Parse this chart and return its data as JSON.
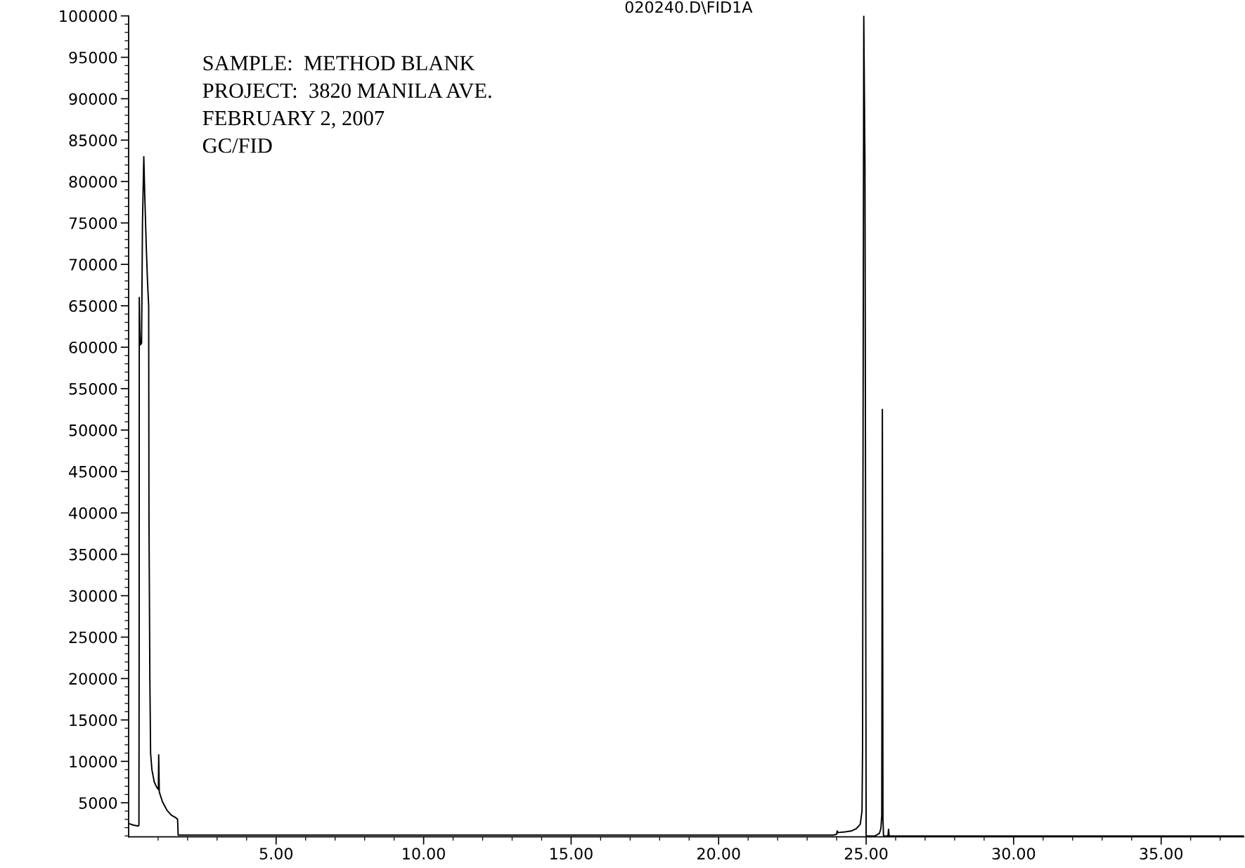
{
  "chart_data": {
    "type": "line",
    "title": "020240.D\\FID1A",
    "annotations": [
      "SAMPLE:  METHOD BLANK",
      "PROJECT:  3820 MANILA AVE.",
      "FEBRUARY 2, 2007",
      "GC/FID"
    ],
    "x": [
      0.0,
      0.16,
      0.33,
      0.35,
      0.357,
      0.362,
      0.38,
      0.4,
      0.44,
      0.47,
      0.515,
      0.55,
      0.6,
      0.64,
      0.68,
      0.69,
      0.72,
      0.745,
      0.79,
      0.87,
      0.95,
      1.01,
      1.02,
      1.04,
      1.15,
      1.3,
      1.45,
      1.6,
      1.66,
      1.68,
      10.0,
      20.0,
      23.9,
      24.0,
      24.02,
      24.05,
      24.3,
      24.5,
      24.67,
      24.8,
      24.86,
      24.88,
      24.89,
      24.92,
      24.96,
      25.0,
      25.3,
      25.35,
      25.45,
      25.5,
      25.53,
      25.55,
      25.57,
      25.59,
      25.74,
      25.76,
      25.78,
      37.8
    ],
    "values": [
      2500,
      2300,
      2200,
      2300,
      23000,
      66000,
      62000,
      60300,
      60500,
      75000,
      83000,
      78000,
      72000,
      68000,
      65000,
      40000,
      20000,
      11000,
      9000,
      7500,
      6900,
      6600,
      10800,
      6300,
      5100,
      4100,
      3500,
      3200,
      3000,
      1100,
      1100,
      1100,
      1100,
      1200,
      1600,
      1400,
      1500,
      1600,
      1900,
      2400,
      4000,
      12000,
      37000,
      100000,
      82000,
      1000,
      1000,
      1100,
      1300,
      1900,
      3500,
      52500,
      3000,
      1000,
      1000,
      1800,
      1000,
      1000
    ],
    "color": "#000000",
    "line_style": "solid",
    "xlim": [
      0,
      37.8
    ],
    "ylim": [
      900,
      100000
    ],
    "xticks": [
      {
        "value": 1,
        "label": null
      },
      {
        "value": 2,
        "label": null
      },
      {
        "value": 3,
        "label": null
      },
      {
        "value": 4,
        "label": null
      },
      {
        "value": 5,
        "label": "5.00"
      },
      {
        "value": 6,
        "label": null
      },
      {
        "value": 7,
        "label": null
      },
      {
        "value": 8,
        "label": null
      },
      {
        "value": 9,
        "label": null
      },
      {
        "value": 10,
        "label": "10.00"
      },
      {
        "value": 11,
        "label": null
      },
      {
        "value": 12,
        "label": null
      },
      {
        "value": 13,
        "label": null
      },
      {
        "value": 14,
        "label": null
      },
      {
        "value": 15,
        "label": "15.00"
      },
      {
        "value": 16,
        "label": null
      },
      {
        "value": 17,
        "label": null
      },
      {
        "value": 18,
        "label": null
      },
      {
        "value": 19,
        "label": null
      },
      {
        "value": 20,
        "label": "20.00"
      },
      {
        "value": 21,
        "label": null
      },
      {
        "value": 22,
        "label": null
      },
      {
        "value": 23,
        "label": null
      },
      {
        "value": 24,
        "label": null
      },
      {
        "value": 25,
        "label": "25.00"
      },
      {
        "value": 26,
        "label": null
      },
      {
        "value": 27,
        "label": null
      },
      {
        "value": 28,
        "label": null
      },
      {
        "value": 29,
        "label": null
      },
      {
        "value": 30,
        "label": "30.00"
      },
      {
        "value": 31,
        "label": null
      },
      {
        "value": 32,
        "label": null
      },
      {
        "value": 33,
        "label": null
      },
      {
        "value": 34,
        "label": null
      },
      {
        "value": 35,
        "label": "35.00"
      },
      {
        "value": 36,
        "label": null
      },
      {
        "value": 37,
        "label": null
      }
    ],
    "yticks": [
      {
        "value": 1000,
        "label": null
      },
      {
        "value": 2000,
        "label": null
      },
      {
        "value": 3000,
        "label": null
      },
      {
        "value": 4000,
        "label": null
      },
      5000,
      {
        "value": 6000,
        "label": null
      },
      {
        "value": 7000,
        "label": null
      },
      {
        "value": 8000,
        "label": null
      },
      {
        "value": 9000,
        "label": null
      },
      10000,
      {
        "value": 11000,
        "label": null
      },
      {
        "value": 12000,
        "label": null
      },
      {
        "value": 13000,
        "label": null
      },
      {
        "value": 14000,
        "label": null
      },
      15000,
      {
        "value": 16000,
        "label": null
      },
      {
        "value": 17000,
        "label": null
      },
      {
        "value": 18000,
        "label": null
      },
      {
        "value": 19000,
        "label": null
      },
      20000,
      {
        "value": 21000,
        "label": null
      },
      {
        "value": 22000,
        "label": null
      },
      {
        "value": 23000,
        "label": null
      },
      {
        "value": 24000,
        "label": null
      },
      25000,
      {
        "value": 26000,
        "label": null
      },
      {
        "value": 27000,
        "label": null
      },
      {
        "value": 28000,
        "label": null
      },
      {
        "value": 29000,
        "label": null
      },
      30000,
      {
        "value": 31000,
        "label": null
      },
      {
        "value": 32000,
        "label": null
      },
      {
        "value": 33000,
        "label": null
      },
      {
        "value": 34000,
        "label": null
      },
      35000,
      {
        "value": 36000,
        "label": null
      },
      {
        "value": 37000,
        "label": null
      },
      {
        "value": 38000,
        "label": null
      },
      {
        "value": 39000,
        "label": null
      },
      40000,
      {
        "value": 41000,
        "label": null
      },
      {
        "value": 42000,
        "label": null
      },
      {
        "value": 43000,
        "label": null
      },
      {
        "value": 44000,
        "label": null
      },
      45000,
      {
        "value": 46000,
        "label": null
      },
      {
        "value": 47000,
        "label": null
      },
      {
        "value": 48000,
        "label": null
      },
      {
        "value": 49000,
        "label": null
      },
      50000,
      {
        "value": 51000,
        "label": null
      },
      {
        "value": 52000,
        "label": null
      },
      {
        "value": 53000,
        "label": null
      },
      {
        "value": 54000,
        "label": null
      },
      55000,
      {
        "value": 56000,
        "label": null
      },
      {
        "value": 57000,
        "label": null
      },
      {
        "value": 58000,
        "label": null
      },
      {
        "value": 59000,
        "label": null
      },
      60000,
      {
        "value": 61000,
        "label": null
      },
      {
        "value": 62000,
        "label": null
      },
      {
        "value": 63000,
        "label": null
      },
      {
        "value": 64000,
        "label": null
      },
      65000,
      {
        "value": 66000,
        "label": null
      },
      {
        "value": 67000,
        "label": null
      },
      {
        "value": 68000,
        "label": null
      },
      {
        "value": 69000,
        "label": null
      },
      70000,
      {
        "value": 71000,
        "label": null
      },
      {
        "value": 72000,
        "label": null
      },
      {
        "value": 73000,
        "label": null
      },
      {
        "value": 74000,
        "label": null
      },
      75000,
      {
        "value": 76000,
        "label": null
      },
      {
        "value": 77000,
        "label": null
      },
      {
        "value": 78000,
        "label": null
      },
      {
        "value": 79000,
        "label": null
      },
      80000,
      {
        "value": 81000,
        "label": null
      },
      {
        "value": 82000,
        "label": null
      },
      {
        "value": 83000,
        "label": null
      },
      {
        "value": 84000,
        "label": null
      },
      85000,
      {
        "value": 86000,
        "label": null
      },
      {
        "value": 87000,
        "label": null
      },
      {
        "value": 88000,
        "label": null
      },
      {
        "value": 89000,
        "label": null
      },
      90000,
      {
        "value": 91000,
        "label": null
      },
      {
        "value": 92000,
        "label": null
      },
      {
        "value": 93000,
        "label": null
      },
      {
        "value": 94000,
        "label": null
      },
      95000,
      {
        "value": 96000,
        "label": null
      },
      {
        "value": 97000,
        "label": null
      },
      {
        "value": 98000,
        "label": null
      },
      {
        "value": 99000,
        "label": null
      },
      100000
    ]
  }
}
